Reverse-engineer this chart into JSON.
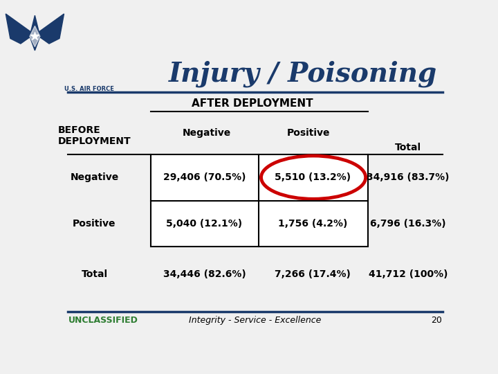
{
  "title": "Injury / Poisoning",
  "after_deployment": "AFTER DEPLOYMENT",
  "before_deployment": "BEFORE\nDEPLOYMENT",
  "col_headers": [
    "Negative",
    "Positive"
  ],
  "row_headers": [
    "Negative",
    "Positive",
    "Total"
  ],
  "total_header": "Total",
  "cells": [
    [
      "29,406 (70.5%)",
      "5,510 (13.2%)",
      "34,916 (83.7%)"
    ],
    [
      "5,040 (12.1%)",
      "1,756 (4.2%)",
      "6,796 (16.3%)"
    ],
    [
      "34,446 (82.6%)",
      "7,266 (17.4%)",
      "41,712 (100%)"
    ]
  ],
  "footer_left": "UNCLASSIFIED",
  "footer_center": "Integrity - Service - Excellence",
  "footer_page": "20",
  "bg_color": "#f0f0f0",
  "header_line_color": "#1a3a6b",
  "title_color": "#1a3a6b",
  "table_border_color": "#000000",
  "highlight_circle_color": "#cc0000",
  "unclassified_color": "#2e7d32",
  "footer_line_color": "#1a3a6b"
}
